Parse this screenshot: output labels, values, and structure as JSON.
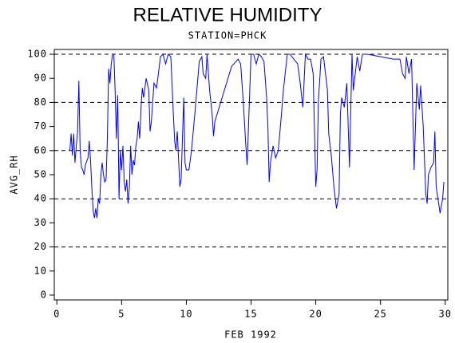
{
  "chart_data": {
    "type": "line",
    "title": "RELATIVE HUMIDITY",
    "subtitle": "STATION=PHCK",
    "x_label": "FEB 1992",
    "y_label": "AVG_RH",
    "xlim": [
      -0.2,
      30.2
    ],
    "ylim": [
      -2,
      102
    ],
    "xticks": [
      0,
      5,
      10,
      15,
      20,
      25,
      30
    ],
    "yticks": [
      0,
      10,
      20,
      30,
      40,
      50,
      60,
      70,
      80,
      90,
      100
    ],
    "grid_values": [
      20,
      40,
      60,
      80,
      100
    ],
    "series": [
      {
        "name": "AVG_RH",
        "color": "#0000ff",
        "x": [
          1.0,
          1.1,
          1.2,
          1.3,
          1.4,
          1.5,
          1.6,
          1.7,
          1.8,
          1.9,
          2.0,
          2.1,
          2.2,
          2.4,
          2.5,
          2.6,
          2.7,
          2.8,
          2.9,
          3.0,
          3.1,
          3.2,
          3.3,
          3.4,
          3.5,
          3.6,
          3.7,
          3.8,
          3.9,
          4.0,
          4.1,
          4.2,
          4.3,
          4.4,
          4.5,
          4.6,
          4.7,
          4.8,
          4.9,
          5.0,
          5.1,
          5.2,
          5.3,
          5.4,
          5.5,
          5.6,
          5.7,
          5.8,
          5.9,
          6.0,
          6.1,
          6.2,
          6.3,
          6.4,
          6.5,
          6.6,
          6.7,
          6.9,
          7.1,
          7.2,
          7.3,
          7.5,
          7.7,
          7.8,
          8.0,
          8.2,
          8.4,
          8.6,
          8.8,
          9.0,
          9.1,
          9.2,
          9.3,
          9.5,
          9.6,
          9.8,
          9.9,
          10.0,
          10.2,
          10.4,
          10.7,
          11.0,
          11.2,
          11.3,
          11.5,
          11.6,
          11.8,
          12.0,
          12.1,
          12.2,
          13.5,
          14.0,
          14.2,
          14.4,
          14.6,
          14.7,
          14.8,
          15.0,
          15.2,
          15.4,
          15.6,
          15.8,
          16.0,
          16.2,
          16.3,
          16.4,
          16.5,
          16.7,
          16.9,
          17.1,
          17.3,
          17.5,
          17.8,
          18.0,
          18.3,
          18.6,
          18.8,
          19.0,
          19.2,
          19.4,
          19.6,
          19.8,
          20.0,
          20.1,
          20.2,
          20.4,
          20.6,
          20.9,
          21.0,
          21.2,
          21.4,
          21.6,
          21.8,
          21.9,
          22.0,
          22.2,
          22.4,
          22.6,
          22.8,
          22.9,
          23.2,
          23.4,
          23.6,
          24.0,
          25.0,
          26.0,
          26.5,
          26.7,
          26.9,
          27.0,
          27.2,
          27.4,
          27.6,
          27.8,
          28.0,
          28.1,
          28.3,
          28.5,
          28.6,
          28.7,
          28.9,
          29.1,
          29.2,
          29.3,
          29.5,
          29.6,
          29.8,
          29.9
        ],
        "values": [
          60,
          67,
          58,
          67,
          55,
          62,
          68,
          89,
          60,
          53,
          52,
          50,
          54,
          57,
          64,
          56,
          45,
          35,
          32,
          36,
          32,
          40,
          38,
          50,
          55,
          50,
          47,
          48,
          65,
          94,
          88,
          96,
          100,
          100,
          85,
          65,
          83,
          40,
          60,
          52,
          62,
          47,
          43,
          48,
          38,
          45,
          62,
          50,
          56,
          54,
          62,
          65,
          72,
          65,
          78,
          86,
          82,
          90,
          85,
          68,
          72,
          88,
          86,
          90,
          99,
          100,
          96,
          100,
          99,
          75,
          64,
          60,
          68,
          45,
          48,
          82,
          55,
          52,
          52,
          60,
          78,
          97,
          99,
          92,
          90,
          100,
          85,
          75,
          66,
          72,
          95,
          98,
          96,
          80,
          62,
          54,
          70,
          100,
          100,
          96,
          100,
          99,
          97,
          82,
          70,
          47,
          55,
          62,
          57,
          60,
          72,
          85,
          100,
          100,
          98,
          96,
          88,
          78,
          100,
          98,
          98,
          92,
          45,
          52,
          80,
          98,
          99,
          85,
          67,
          58,
          45,
          36,
          42,
          75,
          82,
          78,
          88,
          53,
          100,
          85,
          99,
          93,
          100,
          100,
          99,
          98,
          98,
          92,
          90,
          99,
          92,
          98,
          52,
          88,
          77,
          87,
          70,
          42,
          38,
          50,
          53,
          55,
          68,
          45,
          38,
          34,
          40,
          47
        ]
      }
    ]
  }
}
